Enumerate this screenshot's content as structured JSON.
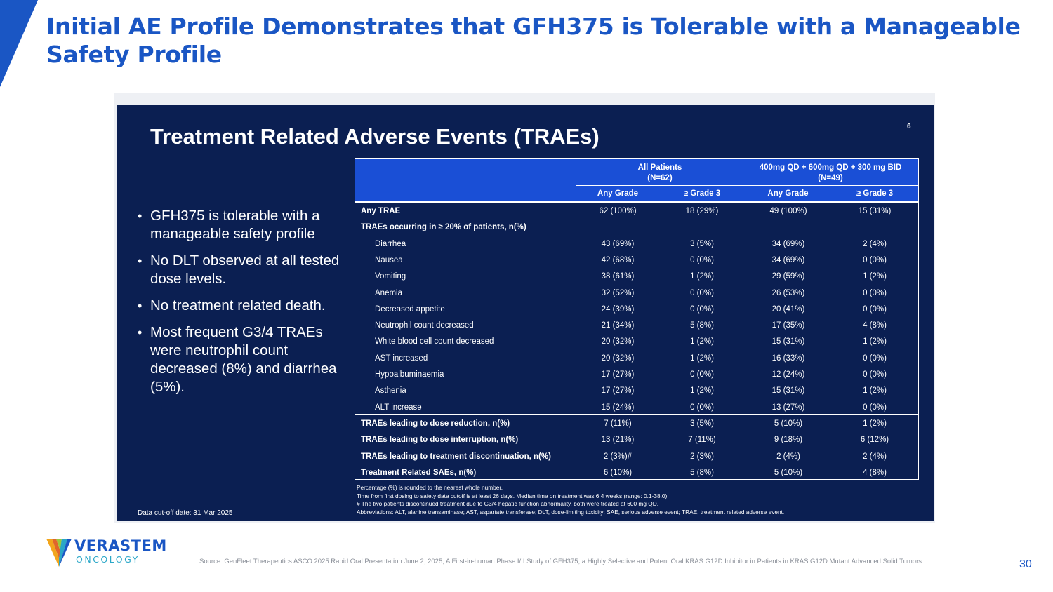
{
  "slide": {
    "title_line1": "Initial AE Profile Demonstrates that GFH375 is Tolerable with a Manageable",
    "title_line2": "Safety Profile",
    "page_number": "30",
    "source": "Source: GenFleet Therapeutics ASCO 2025 Rapid Oral Presentation June 2, 2025; A First-in-human Phase I/II Study of GFH375, a Highly Selective and Potent Oral KRAS G12D Inhibitor in Patients in KRAS G12D Mutant Advanced Solid Tumors",
    "accent_color": "#1a56c4"
  },
  "logo": {
    "name": "VERASTEM",
    "sub": "ONCOLOGY"
  },
  "panel": {
    "title": "Treatment Related Adverse Events (TRAEs)",
    "page": "6",
    "bullets": [
      "GFH375 is tolerable with a manageable safety profile",
      "No DLT observed at all tested dose levels.",
      "No treatment related death.",
      "Most frequent G3/4 TRAEs were neutrophil count decreased (8%) and diarrhea (5%)."
    ],
    "cutoff": "Data cut-off date: 31 Mar 2025",
    "background_color": "#0b1f52",
    "header_color": "#1a4fd6"
  },
  "table": {
    "groups": [
      {
        "line1": "All Patients",
        "line2": "(N=62)"
      },
      {
        "line1": "400mg QD + 600mg QD + 300 mg BID",
        "line2": "(N=49)"
      }
    ],
    "columns": [
      "Any Grade",
      "≥ Grade 3",
      "Any Grade",
      "≥ Grade 3"
    ],
    "rows": [
      {
        "label": "Any TRAE",
        "style": "bold",
        "values": [
          "62 (100%)",
          "18 (29%)",
          "49 (100%)",
          "15 (31%)"
        ]
      },
      {
        "label": "TRAEs occurring in ≥ 20% of patients, n(%)",
        "style": "bold",
        "values": [
          "",
          "",
          "",
          ""
        ]
      },
      {
        "label": "Diarrhea",
        "style": "indent",
        "values": [
          "43 (69%)",
          "3 (5%)",
          "34 (69%)",
          "2 (4%)"
        ]
      },
      {
        "label": "Nausea",
        "style": "indent",
        "values": [
          "42 (68%)",
          "0 (0%)",
          "34 (69%)",
          "0 (0%)"
        ]
      },
      {
        "label": "Vomiting",
        "style": "indent",
        "values": [
          "38 (61%)",
          "1 (2%)",
          "29 (59%)",
          "1 (2%)"
        ]
      },
      {
        "label": "Anemia",
        "style": "indent",
        "values": [
          "32 (52%)",
          "0 (0%)",
          "26 (53%)",
          "0 (0%)"
        ]
      },
      {
        "label": "Decreased appetite",
        "style": "indent",
        "values": [
          "24 (39%)",
          "0 (0%)",
          "20 (41%)",
          "0 (0%)"
        ]
      },
      {
        "label": "Neutrophil count decreased",
        "style": "indent",
        "values": [
          "21 (34%)",
          "5 (8%)",
          "17 (35%)",
          "4 (8%)"
        ]
      },
      {
        "label": "White blood cell count decreased",
        "style": "indent",
        "values": [
          "20 (32%)",
          "1 (2%)",
          "15 (31%)",
          "1 (2%)"
        ]
      },
      {
        "label": "AST increased",
        "style": "indent",
        "values": [
          "20 (32%)",
          "1 (2%)",
          "16 (33%)",
          "0 (0%)"
        ]
      },
      {
        "label": "Hypoalbuminaemia",
        "style": "indent",
        "values": [
          "17 (27%)",
          "0 (0%)",
          "12 (24%)",
          "0 (0%)"
        ]
      },
      {
        "label": "Asthenia",
        "style": "indent",
        "values": [
          "17 (27%)",
          "1 (2%)",
          "15 (31%)",
          "1 (2%)"
        ]
      },
      {
        "label": "ALT increase",
        "style": "indent",
        "values": [
          "15 (24%)",
          "0 (0%)",
          "13 (27%)",
          "0 (0%)"
        ]
      },
      {
        "label": "TRAEs leading to dose reduction, n(%)",
        "style": "bold",
        "values": [
          "7 (11%)",
          "3 (5%)",
          "5 (10%)",
          "1 (2%)"
        ]
      },
      {
        "label": "TRAEs leading to dose interruption, n(%)",
        "style": "bold",
        "values": [
          "13 (21%)",
          "7 (11%)",
          "9 (18%)",
          "6 (12%)"
        ]
      },
      {
        "label": "TRAEs leading to treatment discontinuation, n(%)",
        "style": "bold",
        "values": [
          "2 (3%)#",
          "2 (3%)",
          "2 (4%)",
          "2 (4%)"
        ]
      },
      {
        "label": "Treatment Related SAEs, n(%)",
        "style": "bold",
        "values": [
          "6 (10%)",
          "5 (8%)",
          "5 (10%)",
          "4 (8%)"
        ]
      }
    ],
    "footnotes": [
      "Percentage (%) is rounded to the nearest whole number.",
      "Time from first dosing to safety data cutoff is at least 26 days. Median time on treatment was 6.4 weeks (range: 0.1-38.0).",
      "# The two patients discontinued treatment due to G3/4 hepatic function abnormality, both were treated at 600 mg QD.",
      "Abbreviations: ALT, alanine transaminase; AST, aspartate transferase; DLT, dose-limiting toxicity; SAE, serious adverse event; TRAE, treatment related adverse event."
    ]
  }
}
